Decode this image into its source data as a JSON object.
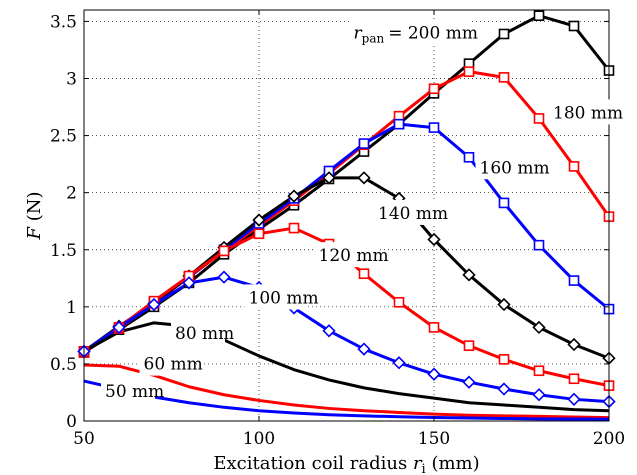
{
  "chart_data": {
    "type": "line",
    "title": "",
    "xlabel": "Excitation coil radius r_i (mm)",
    "xlabel_main": "Excitation coil radius ",
    "xlabel_var": "r",
    "xlabel_sub": "i",
    "xlabel_unit": " (mm)",
    "ylabel": "F (N)",
    "ylabel_var": "F",
    "ylabel_unit": " (N)",
    "xlim": [
      50,
      200
    ],
    "ylim": [
      0,
      3.6
    ],
    "xticks": [
      50,
      100,
      150,
      200
    ],
    "yticks": [
      0,
      0.5,
      1,
      1.5,
      2,
      2.5,
      3,
      3.5
    ],
    "xtick_labels": [
      "50",
      "100",
      "150",
      "200"
    ],
    "ytick_labels": [
      "0",
      "0.5",
      "1",
      "1.5",
      "2",
      "2.5",
      "3",
      "3.5"
    ],
    "grid": true,
    "annotation_prefix": "r",
    "annotation_sub": "pan",
    "x": [
      50,
      60,
      70,
      80,
      90,
      100,
      110,
      120,
      130,
      140,
      150,
      160,
      170,
      180,
      190,
      200
    ],
    "series": [
      {
        "name": "200 mm",
        "label": "= 200 mm",
        "color": "#000000",
        "marker": "square",
        "values": [
          0.6,
          0.8,
          1.0,
          1.21,
          1.46,
          1.68,
          1.89,
          2.12,
          2.36,
          2.6,
          2.87,
          3.13,
          3.39,
          3.55,
          3.46,
          3.07
        ]
      },
      {
        "name": "180 mm",
        "label": "180 mm",
        "color": "#ff0000",
        "marker": "square",
        "values": [
          0.6,
          0.81,
          1.03,
          1.26,
          1.49,
          1.71,
          1.93,
          2.17,
          2.42,
          2.67,
          2.91,
          3.06,
          3.01,
          2.65,
          2.23,
          1.79
        ]
      },
      {
        "name": "160 mm",
        "label": "160 mm",
        "color": "#0000ff",
        "marker": "square",
        "values": [
          0.61,
          0.82,
          1.04,
          1.26,
          1.5,
          1.73,
          1.95,
          2.19,
          2.43,
          2.6,
          2.57,
          2.31,
          1.91,
          1.54,
          1.23,
          0.98
        ]
      },
      {
        "name": "140 mm",
        "label": "140 mm",
        "color": "#000000",
        "marker": "diamond",
        "values": [
          0.61,
          0.83,
          1.03,
          1.27,
          1.52,
          1.76,
          1.97,
          2.13,
          2.13,
          1.95,
          1.59,
          1.28,
          1.02,
          0.82,
          0.67,
          0.55
        ]
      },
      {
        "name": "120 mm",
        "label": "120 mm",
        "color": "#ff0000",
        "marker": "square",
        "values": [
          0.61,
          0.82,
          1.05,
          1.27,
          1.49,
          1.64,
          1.69,
          1.55,
          1.29,
          1.04,
          0.82,
          0.66,
          0.54,
          0.44,
          0.37,
          0.31
        ]
      },
      {
        "name": "100 mm",
        "label": "100 mm",
        "color": "#0000ff",
        "marker": "diamond",
        "values": [
          0.61,
          0.82,
          1.02,
          1.21,
          1.26,
          1.17,
          0.99,
          0.79,
          0.63,
          0.51,
          0.41,
          0.34,
          0.28,
          0.23,
          0.19,
          0.17
        ]
      },
      {
        "name": "80 mm",
        "label": "80 mm",
        "color": "#000000",
        "marker": "none",
        "values": [
          0.61,
          0.78,
          0.86,
          0.83,
          0.71,
          0.57,
          0.45,
          0.36,
          0.29,
          0.24,
          0.2,
          0.16,
          0.14,
          0.12,
          0.1,
          0.09
        ]
      },
      {
        "name": "60 mm",
        "label": "60 mm",
        "color": "#ff0000",
        "marker": "none",
        "values": [
          0.49,
          0.48,
          0.4,
          0.3,
          0.23,
          0.18,
          0.14,
          0.11,
          0.09,
          0.075,
          0.06,
          0.05,
          0.045,
          0.04,
          0.035,
          0.03
        ]
      },
      {
        "name": "50 mm",
        "label": "50 mm",
        "color": "#0000ff",
        "marker": "none",
        "values": [
          0.35,
          0.28,
          0.21,
          0.16,
          0.12,
          0.09,
          0.07,
          0.055,
          0.045,
          0.037,
          0.031,
          0.026,
          0.022,
          0.019,
          0.017,
          0.015
        ]
      }
    ]
  }
}
